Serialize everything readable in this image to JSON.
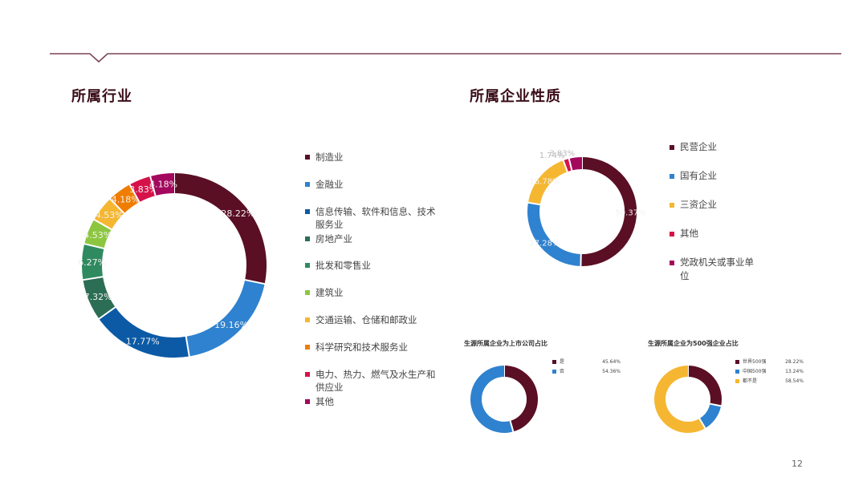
{
  "page": {
    "number": "12",
    "rule_color": "#7a4654"
  },
  "industry": {
    "title": "所属行业"
  },
  "nature": {
    "title": "所属企业性质"
  },
  "listed": {
    "title": "生源所属企业为上市公司占比"
  },
  "top500": {
    "title": "生源所属企业为500强企业占比"
  },
  "chart_data": [
    {
      "type": "pie",
      "donut": true,
      "title": "所属行业",
      "legend_position": "right",
      "slices": [
        {
          "label": "制造业",
          "value": 28.22,
          "display": "28.22%",
          "color": "#5a0f24"
        },
        {
          "label": "金融业",
          "value": 19.16,
          "display": "19.16%",
          "color": "#2f82cf"
        },
        {
          "label": "信息传输、软件和信息、技术服务业",
          "value": 17.77,
          "display": "17.77%",
          "color": "#0c5aa6"
        },
        {
          "label": "房地产业",
          "value": 7.32,
          "display": "7.32%",
          "color": "#2c6e55"
        },
        {
          "label": "批发和零售业",
          "value": 6.27,
          "display": "6.27%",
          "color": "#2f8a60"
        },
        {
          "label": "建筑业",
          "value": 4.53,
          "display": "4.53%",
          "color": "#8cc63f"
        },
        {
          "label": "交通运输、仓储和邮政业",
          "value": 4.53,
          "display": "4.53%",
          "color": "#f5b731"
        },
        {
          "label": "科学研究和技术服务业",
          "value": 4.18,
          "display": "4.18%",
          "color": "#ef7d00"
        },
        {
          "label": "电力、热力、燃气及水生产和供应业",
          "value": 3.83,
          "display": "3.83%",
          "color": "#d6124a"
        },
        {
          "label": "其他",
          "value": 4.18,
          "display": "4.18%",
          "color": "#a3085d"
        }
      ]
    },
    {
      "type": "pie",
      "donut": true,
      "title": "所属企业性质",
      "legend_position": "right",
      "slices": [
        {
          "label": "民营企业",
          "value": 50.37,
          "display": "50.37%",
          "color": "#5a0f24"
        },
        {
          "label": "国有企业",
          "value": 27.28,
          "display": "27.28%",
          "color": "#2f82cf"
        },
        {
          "label": "三资企业",
          "value": 16.78,
          "display": "16.78%",
          "color": "#f5b731"
        },
        {
          "label": "其他",
          "value": 1.74,
          "display": "1.74%",
          "color": "#d6124a"
        },
        {
          "label": "党政机关或事业单位",
          "value": 3.83,
          "display": "3.83%",
          "color": "#a3085d"
        }
      ]
    },
    {
      "type": "pie",
      "donut": true,
      "title": "生源所属企业为上市公司占比",
      "legend_position": "right",
      "slices": [
        {
          "label": "是",
          "value": 45.64,
          "display": "45.64%",
          "color": "#5a0f24"
        },
        {
          "label": "否",
          "value": 54.36,
          "display": "54.36%",
          "color": "#2f82cf"
        }
      ]
    },
    {
      "type": "pie",
      "donut": true,
      "title": "生源所属企业为500强企业占比",
      "legend_position": "right",
      "slices": [
        {
          "label": "世界500强",
          "value": 28.22,
          "display": "28.22%",
          "color": "#5a0f24"
        },
        {
          "label": "中国500强",
          "value": 13.24,
          "display": "13.24%",
          "color": "#2f82cf"
        },
        {
          "label": "都不是",
          "value": 58.54,
          "display": "58.54%",
          "color": "#f5b731"
        }
      ]
    }
  ]
}
